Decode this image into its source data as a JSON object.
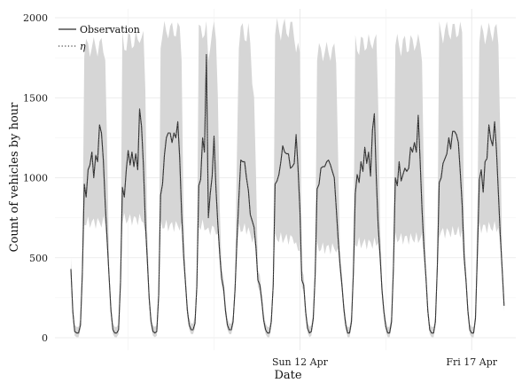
{
  "chart_data": {
    "type": "line",
    "title": "",
    "xlabel": "Date",
    "ylabel": "Count of vehicles by hour",
    "ylim": [
      0,
      2000
    ],
    "yticks": [
      0,
      500,
      1000,
      1500,
      2000
    ],
    "xlim": [
      0,
      228
    ],
    "x_unit": "hours since first observation",
    "xticks": [
      {
        "x": 120,
        "label": "Sun 12 Apr"
      },
      {
        "x": 210,
        "label": "Fri 17 Apr"
      }
    ],
    "grid": true,
    "legend_position": "top-left",
    "colors": {
      "observation": "#2b2b2b",
      "eta": "#555555",
      "band": "#d6d6d6",
      "grid": "#e6e6e6"
    },
    "legend": {
      "observation_label": "Observation",
      "eta_label": "η"
    },
    "band_peaks_upper": [
      1880,
      1920,
      1980,
      1980,
      2000,
      1850,
      1900,
      1900,
      1980,
      1970
    ],
    "band_peaks_lower": [
      720,
      740,
      700,
      680,
      620,
      560,
      590,
      620,
      660,
      690
    ],
    "series": [
      {
        "name": "Observation",
        "style": "solid",
        "x": [
          0,
          1,
          2,
          3,
          4,
          5,
          6,
          7,
          8,
          9,
          10,
          11,
          12,
          13,
          14,
          15,
          16,
          17,
          18,
          19,
          20,
          21,
          22,
          23,
          24,
          25,
          26,
          27,
          28,
          29,
          30,
          31,
          32,
          33,
          34,
          35,
          36,
          37,
          38,
          39,
          40,
          41,
          42,
          43,
          44,
          45,
          46,
          47,
          48,
          49,
          50,
          51,
          52,
          53,
          54,
          55,
          56,
          57,
          58,
          59,
          60,
          61,
          62,
          63,
          64,
          65,
          66,
          67,
          68,
          69,
          70,
          71,
          72,
          73,
          74,
          75,
          76,
          77,
          78,
          79,
          80,
          81,
          82,
          83,
          84,
          85,
          86,
          87,
          88,
          89,
          90,
          91,
          92,
          93,
          94,
          95,
          96,
          97,
          98,
          99,
          100,
          101,
          102,
          103,
          104,
          105,
          106,
          107,
          108,
          109,
          110,
          111,
          112,
          113,
          114,
          115,
          116,
          117,
          118,
          119,
          120,
          121,
          122,
          123,
          124,
          125,
          126,
          127,
          128,
          129,
          130,
          131,
          132,
          133,
          134,
          135,
          136,
          137,
          138,
          139,
          140,
          141,
          142,
          143,
          144,
          145,
          146,
          147,
          148,
          149,
          150,
          151,
          152,
          153,
          154,
          155,
          156,
          157,
          158,
          159,
          160,
          161,
          162,
          163,
          164,
          165,
          166,
          167,
          168,
          169,
          170,
          171,
          172,
          173,
          174,
          175,
          176,
          177,
          178,
          179,
          180,
          181,
          182,
          183,
          184,
          185,
          186,
          187,
          188,
          189,
          190,
          191,
          192,
          193,
          194,
          195,
          196,
          197,
          198,
          199,
          200,
          201,
          202,
          203,
          204,
          205,
          206,
          207,
          208,
          209,
          210,
          211,
          212,
          213,
          214,
          215,
          216,
          217,
          218,
          219,
          220,
          221,
          222,
          223,
          224,
          225,
          226,
          227
        ],
        "values": [
          430,
          160,
          40,
          30,
          30,
          80,
          400,
          960,
          880,
          1050,
          1080,
          1160,
          1000,
          1140,
          1100,
          1330,
          1280,
          1110,
          830,
          610,
          380,
          170,
          50,
          30,
          30,
          50,
          350,
          940,
          880,
          1050,
          1170,
          1080,
          1160,
          1070,
          1150,
          1050,
          1430,
          1320,
          1080,
          720,
          500,
          250,
          100,
          40,
          30,
          40,
          270,
          890,
          960,
          1140,
          1250,
          1280,
          1280,
          1220,
          1280,
          1250,
          1350,
          1120,
          780,
          520,
          350,
          170,
          80,
          50,
          50,
          90,
          320,
          950,
          990,
          1250,
          1160,
          1770,
          750,
          900,
          1010,
          1260,
          930,
          710,
          520,
          370,
          310,
          170,
          80,
          50,
          50,
          100,
          300,
          610,
          870,
          1110,
          1100,
          1100,
          1000,
          920,
          770,
          730,
          690,
          560,
          360,
          330,
          230,
          110,
          50,
          30,
          30,
          100,
          330,
          960,
          980,
          1020,
          1100,
          1200,
          1160,
          1150,
          1150,
          1060,
          1070,
          1090,
          1270,
          1060,
          800,
          360,
          330,
          160,
          60,
          30,
          40,
          120,
          390,
          930,
          960,
          1060,
          1070,
          1070,
          1100,
          1110,
          1080,
          1040,
          1000,
          820,
          620,
          460,
          330,
          180,
          80,
          30,
          30,
          100,
          400,
          900,
          1020,
          970,
          1100,
          1040,
          1190,
          1090,
          1160,
          1010,
          1300,
          1400,
          1000,
          700,
          510,
          300,
          160,
          70,
          30,
          30,
          100,
          430,
          1000,
          950,
          1100,
          980,
          1020,
          1060,
          1040,
          1060,
          1190,
          1160,
          1220,
          1160,
          1390,
          1100,
          800,
          560,
          380,
          170,
          50,
          30,
          30,
          100,
          450,
          970,
          1000,
          1090,
          1120,
          1150,
          1250,
          1180,
          1290,
          1290,
          1270,
          1220,
          1040,
          830,
          510,
          360,
          170,
          50,
          30,
          30,
          120,
          530,
          990,
          1050,
          910,
          1100,
          1120,
          1330,
          1240,
          1200,
          1350,
          1170,
          900,
          640,
          420,
          200
        ]
      },
      {
        "name": "η",
        "style": "dotted",
        "x": [
          0,
          1,
          2,
          3,
          4,
          5,
          6,
          7,
          8,
          9,
          10,
          11,
          12,
          13,
          14,
          15,
          16,
          17,
          18,
          19,
          20,
          21,
          22,
          23,
          24,
          25,
          26,
          27,
          28,
          29,
          30,
          31,
          32,
          33,
          34,
          35,
          36,
          37,
          38,
          39,
          40,
          41,
          42,
          43,
          44,
          45,
          46,
          47,
          48,
          49,
          50,
          51,
          52,
          53,
          54,
          55,
          56,
          57,
          58,
          59,
          60,
          61,
          62,
          63,
          64,
          65,
          66,
          67,
          68,
          69,
          70,
          71,
          72,
          73,
          74,
          75,
          76,
          77,
          78,
          79,
          80,
          81,
          82,
          83,
          84,
          85,
          86,
          87,
          88,
          89,
          90,
          91,
          92,
          93,
          94,
          95,
          96,
          97,
          98,
          99,
          100,
          101,
          102,
          103,
          104,
          105,
          106,
          107,
          108,
          109,
          110,
          111,
          112,
          113,
          114,
          115,
          116,
          117,
          118,
          119,
          120,
          121,
          122,
          123,
          124,
          125,
          126,
          127,
          128,
          129,
          130,
          131,
          132,
          133,
          134,
          135,
          136,
          137,
          138,
          139,
          140,
          141,
          142,
          143,
          144,
          145,
          146,
          147,
          148,
          149,
          150,
          151,
          152,
          153,
          154,
          155,
          156,
          157,
          158,
          159,
          160,
          161,
          162,
          163,
          164,
          165,
          166,
          167,
          168,
          169,
          170,
          171,
          172,
          173,
          174,
          175,
          176,
          177,
          178,
          179,
          180,
          181,
          182,
          183,
          184,
          185,
          186,
          187,
          188,
          189,
          190,
          191,
          192,
          193,
          194,
          195,
          196,
          197,
          198,
          199,
          200,
          201,
          202,
          203,
          204,
          205,
          206,
          207,
          208,
          209,
          210,
          211,
          212,
          213,
          214,
          215,
          216,
          217,
          218,
          219,
          220,
          221,
          222,
          223,
          224,
          225,
          226,
          227
        ],
        "values": [
          430,
          160,
          40,
          30,
          30,
          80,
          400,
          960,
          880,
          1050,
          1080,
          1160,
          1000,
          1140,
          1100,
          1330,
          1280,
          1110,
          830,
          610,
          380,
          170,
          50,
          30,
          30,
          50,
          350,
          940,
          880,
          1050,
          1170,
          1080,
          1160,
          1070,
          1150,
          1050,
          1430,
          1320,
          1080,
          720,
          500,
          250,
          100,
          40,
          30,
          40,
          270,
          890,
          960,
          1140,
          1250,
          1280,
          1280,
          1220,
          1280,
          1250,
          1350,
          1120,
          780,
          520,
          350,
          170,
          80,
          50,
          50,
          90,
          320,
          950,
          990,
          1250,
          1160,
          1770,
          750,
          900,
          1010,
          1260,
          930,
          710,
          520,
          370,
          310,
          170,
          80,
          50,
          50,
          100,
          300,
          610,
          870,
          1110,
          1100,
          1100,
          1000,
          920,
          770,
          730,
          690,
          560,
          360,
          330,
          230,
          110,
          50,
          30,
          30,
          100,
          330,
          960,
          980,
          1020,
          1100,
          1200,
          1160,
          1150,
          1150,
          1060,
          1070,
          1090,
          1270,
          1060,
          800,
          360,
          330,
          160,
          60,
          30,
          40,
          120,
          390,
          930,
          960,
          1060,
          1070,
          1070,
          1100,
          1110,
          1080,
          1040,
          1000,
          820,
          620,
          460,
          330,
          180,
          80,
          30,
          30,
          100,
          400,
          900,
          1020,
          970,
          1100,
          1040,
          1190,
          1090,
          1160,
          1010,
          1300,
          1400,
          1000,
          700,
          510,
          300,
          160,
          70,
          30,
          30,
          100,
          430,
          1000,
          950,
          1100,
          980,
          1020,
          1060,
          1040,
          1060,
          1190,
          1160,
          1220,
          1160,
          1390,
          1100,
          800,
          560,
          380,
          170,
          50,
          30,
          30,
          100,
          450,
          970,
          1000,
          1090,
          1120,
          1150,
          1250,
          1180,
          1290,
          1290,
          1270,
          1220,
          1040,
          830,
          510,
          360,
          170,
          50,
          30,
          30,
          120,
          530,
          990,
          1050,
          910,
          1100,
          1120,
          1330,
          1240,
          1200,
          1350,
          1170,
          900,
          640,
          420,
          200
        ]
      }
    ]
  }
}
